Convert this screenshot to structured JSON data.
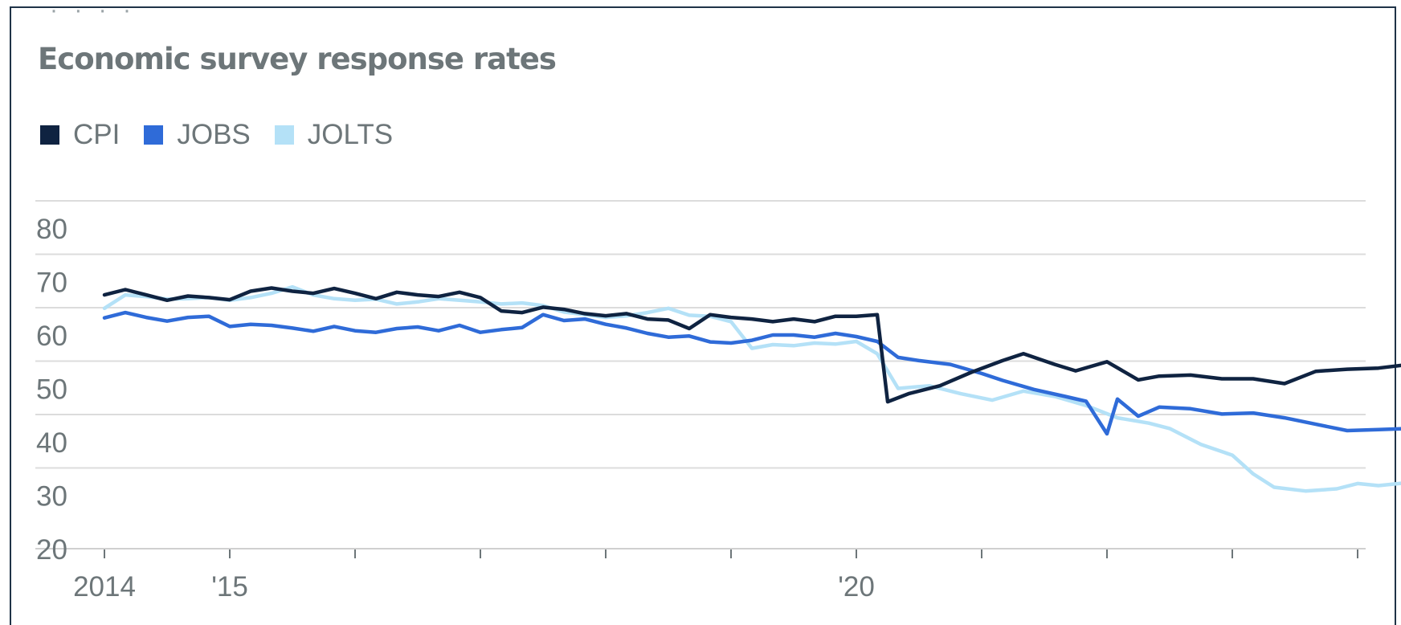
{
  "title": "Economic survey response rates",
  "legend": [
    {
      "name": "CPI",
      "color": "#0f2341"
    },
    {
      "name": "JOBS",
      "color": "#2f6bd8"
    },
    {
      "name": "JOLTS",
      "color": "#b4e1f7"
    }
  ],
  "chart_data": {
    "type": "line",
    "title": "Economic survey response rates",
    "xlabel": "",
    "ylabel": "",
    "ylim": [
      20,
      80
    ],
    "xlim": [
      "2014-01",
      "2024-12"
    ],
    "y_ticks": [
      20,
      30,
      40,
      50,
      60,
      70,
      80
    ],
    "x_tick_labels": [
      {
        "date": "2014-01",
        "label": "2014"
      },
      {
        "date": "2015-01",
        "label": "'15"
      },
      {
        "date": "2020-01",
        "label": "'20"
      }
    ],
    "x_tick_marks": [
      "2014-01",
      "2015-01",
      "2016-01",
      "2017-01",
      "2018-01",
      "2019-01",
      "2020-01",
      "2021-01",
      "2022-01",
      "2023-01",
      "2024-01"
    ],
    "grid": true,
    "legend_position": "top-left",
    "series": [
      {
        "name": "CPI",
        "color": "#0f2341",
        "points": [
          [
            "2014-01",
            67.5
          ],
          [
            "2014-03",
            68.5
          ],
          [
            "2014-05",
            67.5
          ],
          [
            "2014-07",
            66.5
          ],
          [
            "2014-09",
            67.3
          ],
          [
            "2014-11",
            67.0
          ],
          [
            "2015-01",
            66.6
          ],
          [
            "2015-03",
            68.2
          ],
          [
            "2015-05",
            68.8
          ],
          [
            "2015-07",
            68.2
          ],
          [
            "2015-09",
            67.8
          ],
          [
            "2015-11",
            68.7
          ],
          [
            "2016-01",
            67.8
          ],
          [
            "2016-03",
            66.8
          ],
          [
            "2016-05",
            68.0
          ],
          [
            "2016-07",
            67.5
          ],
          [
            "2016-09",
            67.2
          ],
          [
            "2016-11",
            68.0
          ],
          [
            "2017-01",
            67.0
          ],
          [
            "2017-03",
            64.5
          ],
          [
            "2017-05",
            64.2
          ],
          [
            "2017-07",
            65.2
          ],
          [
            "2017-09",
            64.8
          ],
          [
            "2017-11",
            64.0
          ],
          [
            "2018-01",
            63.6
          ],
          [
            "2018-03",
            64.0
          ],
          [
            "2018-05",
            63.0
          ],
          [
            "2018-07",
            62.8
          ],
          [
            "2018-09",
            61.2
          ],
          [
            "2018-11",
            63.8
          ],
          [
            "2019-01",
            63.3
          ],
          [
            "2019-03",
            63.0
          ],
          [
            "2019-05",
            62.5
          ],
          [
            "2019-07",
            63.0
          ],
          [
            "2019-09",
            62.5
          ],
          [
            "2019-11",
            63.5
          ],
          [
            "2020-01",
            63.5
          ],
          [
            "2020-03",
            63.8
          ],
          [
            "2020-04",
            47.5
          ],
          [
            "2020-06",
            49.0
          ],
          [
            "2020-09",
            50.5
          ],
          [
            "2020-12",
            53.0
          ],
          [
            "2021-03",
            55.2
          ],
          [
            "2021-05",
            56.5
          ],
          [
            "2021-08",
            54.5
          ],
          [
            "2021-10",
            53.3
          ],
          [
            "2022-01",
            55.0
          ],
          [
            "2022-04",
            51.6
          ],
          [
            "2022-06",
            52.3
          ],
          [
            "2022-09",
            52.5
          ],
          [
            "2022-12",
            51.8
          ],
          [
            "2023-03",
            51.8
          ],
          [
            "2023-06",
            50.9
          ],
          [
            "2023-09",
            53.2
          ],
          [
            "2023-12",
            53.6
          ],
          [
            "2024-03",
            53.8
          ],
          [
            "2024-06",
            54.5
          ],
          [
            "2024-09",
            53.3
          ],
          [
            "2024-10",
            52.5
          ]
        ]
      },
      {
        "name": "JOBS",
        "color": "#2f6bd8",
        "points": [
          [
            "2014-01",
            63.2
          ],
          [
            "2014-03",
            64.2
          ],
          [
            "2014-05",
            63.3
          ],
          [
            "2014-07",
            62.6
          ],
          [
            "2014-09",
            63.3
          ],
          [
            "2014-11",
            63.5
          ],
          [
            "2015-01",
            61.6
          ],
          [
            "2015-03",
            62.0
          ],
          [
            "2015-05",
            61.8
          ],
          [
            "2015-07",
            61.3
          ],
          [
            "2015-09",
            60.7
          ],
          [
            "2015-11",
            61.6
          ],
          [
            "2016-01",
            60.8
          ],
          [
            "2016-03",
            60.5
          ],
          [
            "2016-05",
            61.2
          ],
          [
            "2016-07",
            61.5
          ],
          [
            "2016-09",
            60.8
          ],
          [
            "2016-11",
            61.8
          ],
          [
            "2017-01",
            60.5
          ],
          [
            "2017-03",
            61.0
          ],
          [
            "2017-05",
            61.4
          ],
          [
            "2017-07",
            63.8
          ],
          [
            "2017-09",
            62.7
          ],
          [
            "2017-11",
            63.0
          ],
          [
            "2018-01",
            62.0
          ],
          [
            "2018-03",
            61.3
          ],
          [
            "2018-05",
            60.3
          ],
          [
            "2018-07",
            59.6
          ],
          [
            "2018-09",
            59.8
          ],
          [
            "2018-11",
            58.7
          ],
          [
            "2019-01",
            58.5
          ],
          [
            "2019-03",
            59.0
          ],
          [
            "2019-05",
            60.0
          ],
          [
            "2019-07",
            60.0
          ],
          [
            "2019-09",
            59.6
          ],
          [
            "2019-11",
            60.3
          ],
          [
            "2020-01",
            59.7
          ],
          [
            "2020-03",
            58.8
          ],
          [
            "2020-05",
            55.8
          ],
          [
            "2020-07",
            55.2
          ],
          [
            "2020-10",
            54.5
          ],
          [
            "2021-01",
            52.8
          ],
          [
            "2021-03",
            51.5
          ],
          [
            "2021-06",
            49.8
          ],
          [
            "2021-09",
            48.5
          ],
          [
            "2021-11",
            47.6
          ],
          [
            "2022-01",
            41.5
          ],
          [
            "2022-02",
            48.0
          ],
          [
            "2022-04",
            44.8
          ],
          [
            "2022-06",
            46.5
          ],
          [
            "2022-09",
            46.2
          ],
          [
            "2022-12",
            45.2
          ],
          [
            "2023-03",
            45.4
          ],
          [
            "2023-06",
            44.5
          ],
          [
            "2023-09",
            43.3
          ],
          [
            "2023-12",
            42.1
          ],
          [
            "2024-03",
            42.3
          ],
          [
            "2024-06",
            42.5
          ],
          [
            "2024-08",
            43.2
          ],
          [
            "2024-10",
            43.7
          ]
        ]
      },
      {
        "name": "JOLTS",
        "color": "#b4e1f7",
        "points": [
          [
            "2014-01",
            65.0
          ],
          [
            "2014-03",
            67.5
          ],
          [
            "2014-05",
            67.2
          ],
          [
            "2014-07",
            66.7
          ],
          [
            "2014-09",
            66.8
          ],
          [
            "2014-11",
            67.0
          ],
          [
            "2015-01",
            66.5
          ],
          [
            "2015-03",
            67.0
          ],
          [
            "2015-05",
            67.8
          ],
          [
            "2015-07",
            69.0
          ],
          [
            "2015-09",
            67.5
          ],
          [
            "2015-11",
            66.8
          ],
          [
            "2016-01",
            66.5
          ],
          [
            "2016-03",
            66.7
          ],
          [
            "2016-05",
            65.8
          ],
          [
            "2016-07",
            66.2
          ],
          [
            "2016-09",
            66.8
          ],
          [
            "2016-11",
            66.5
          ],
          [
            "2017-01",
            66.2
          ],
          [
            "2017-03",
            65.8
          ],
          [
            "2017-05",
            66.0
          ],
          [
            "2017-07",
            65.5
          ],
          [
            "2017-09",
            64.3
          ],
          [
            "2017-11",
            63.8
          ],
          [
            "2018-01",
            63.3
          ],
          [
            "2018-03",
            63.6
          ],
          [
            "2018-05",
            64.2
          ],
          [
            "2018-07",
            65.0
          ],
          [
            "2018-09",
            63.7
          ],
          [
            "2018-11",
            63.5
          ],
          [
            "2019-01",
            62.5
          ],
          [
            "2019-03",
            57.5
          ],
          [
            "2019-05",
            58.2
          ],
          [
            "2019-07",
            58.0
          ],
          [
            "2019-09",
            58.5
          ],
          [
            "2019-11",
            58.3
          ],
          [
            "2020-01",
            58.8
          ],
          [
            "2020-03",
            56.5
          ],
          [
            "2020-05",
            50.0
          ],
          [
            "2020-08",
            50.5
          ],
          [
            "2020-11",
            49.0
          ],
          [
            "2021-02",
            47.8
          ],
          [
            "2021-05",
            49.5
          ],
          [
            "2021-08",
            48.5
          ],
          [
            "2021-11",
            46.8
          ],
          [
            "2022-02",
            44.5
          ],
          [
            "2022-05",
            43.5
          ],
          [
            "2022-07",
            42.5
          ],
          [
            "2022-10",
            39.5
          ],
          [
            "2023-01",
            37.5
          ],
          [
            "2023-03",
            34.0
          ],
          [
            "2023-05",
            31.5
          ],
          [
            "2023-08",
            30.8
          ],
          [
            "2023-11",
            31.2
          ],
          [
            "2024-01",
            32.2
          ],
          [
            "2024-03",
            31.8
          ],
          [
            "2024-06",
            32.4
          ],
          [
            "2024-09",
            32.3
          ],
          [
            "2024-10",
            33.8
          ]
        ]
      }
    ]
  }
}
